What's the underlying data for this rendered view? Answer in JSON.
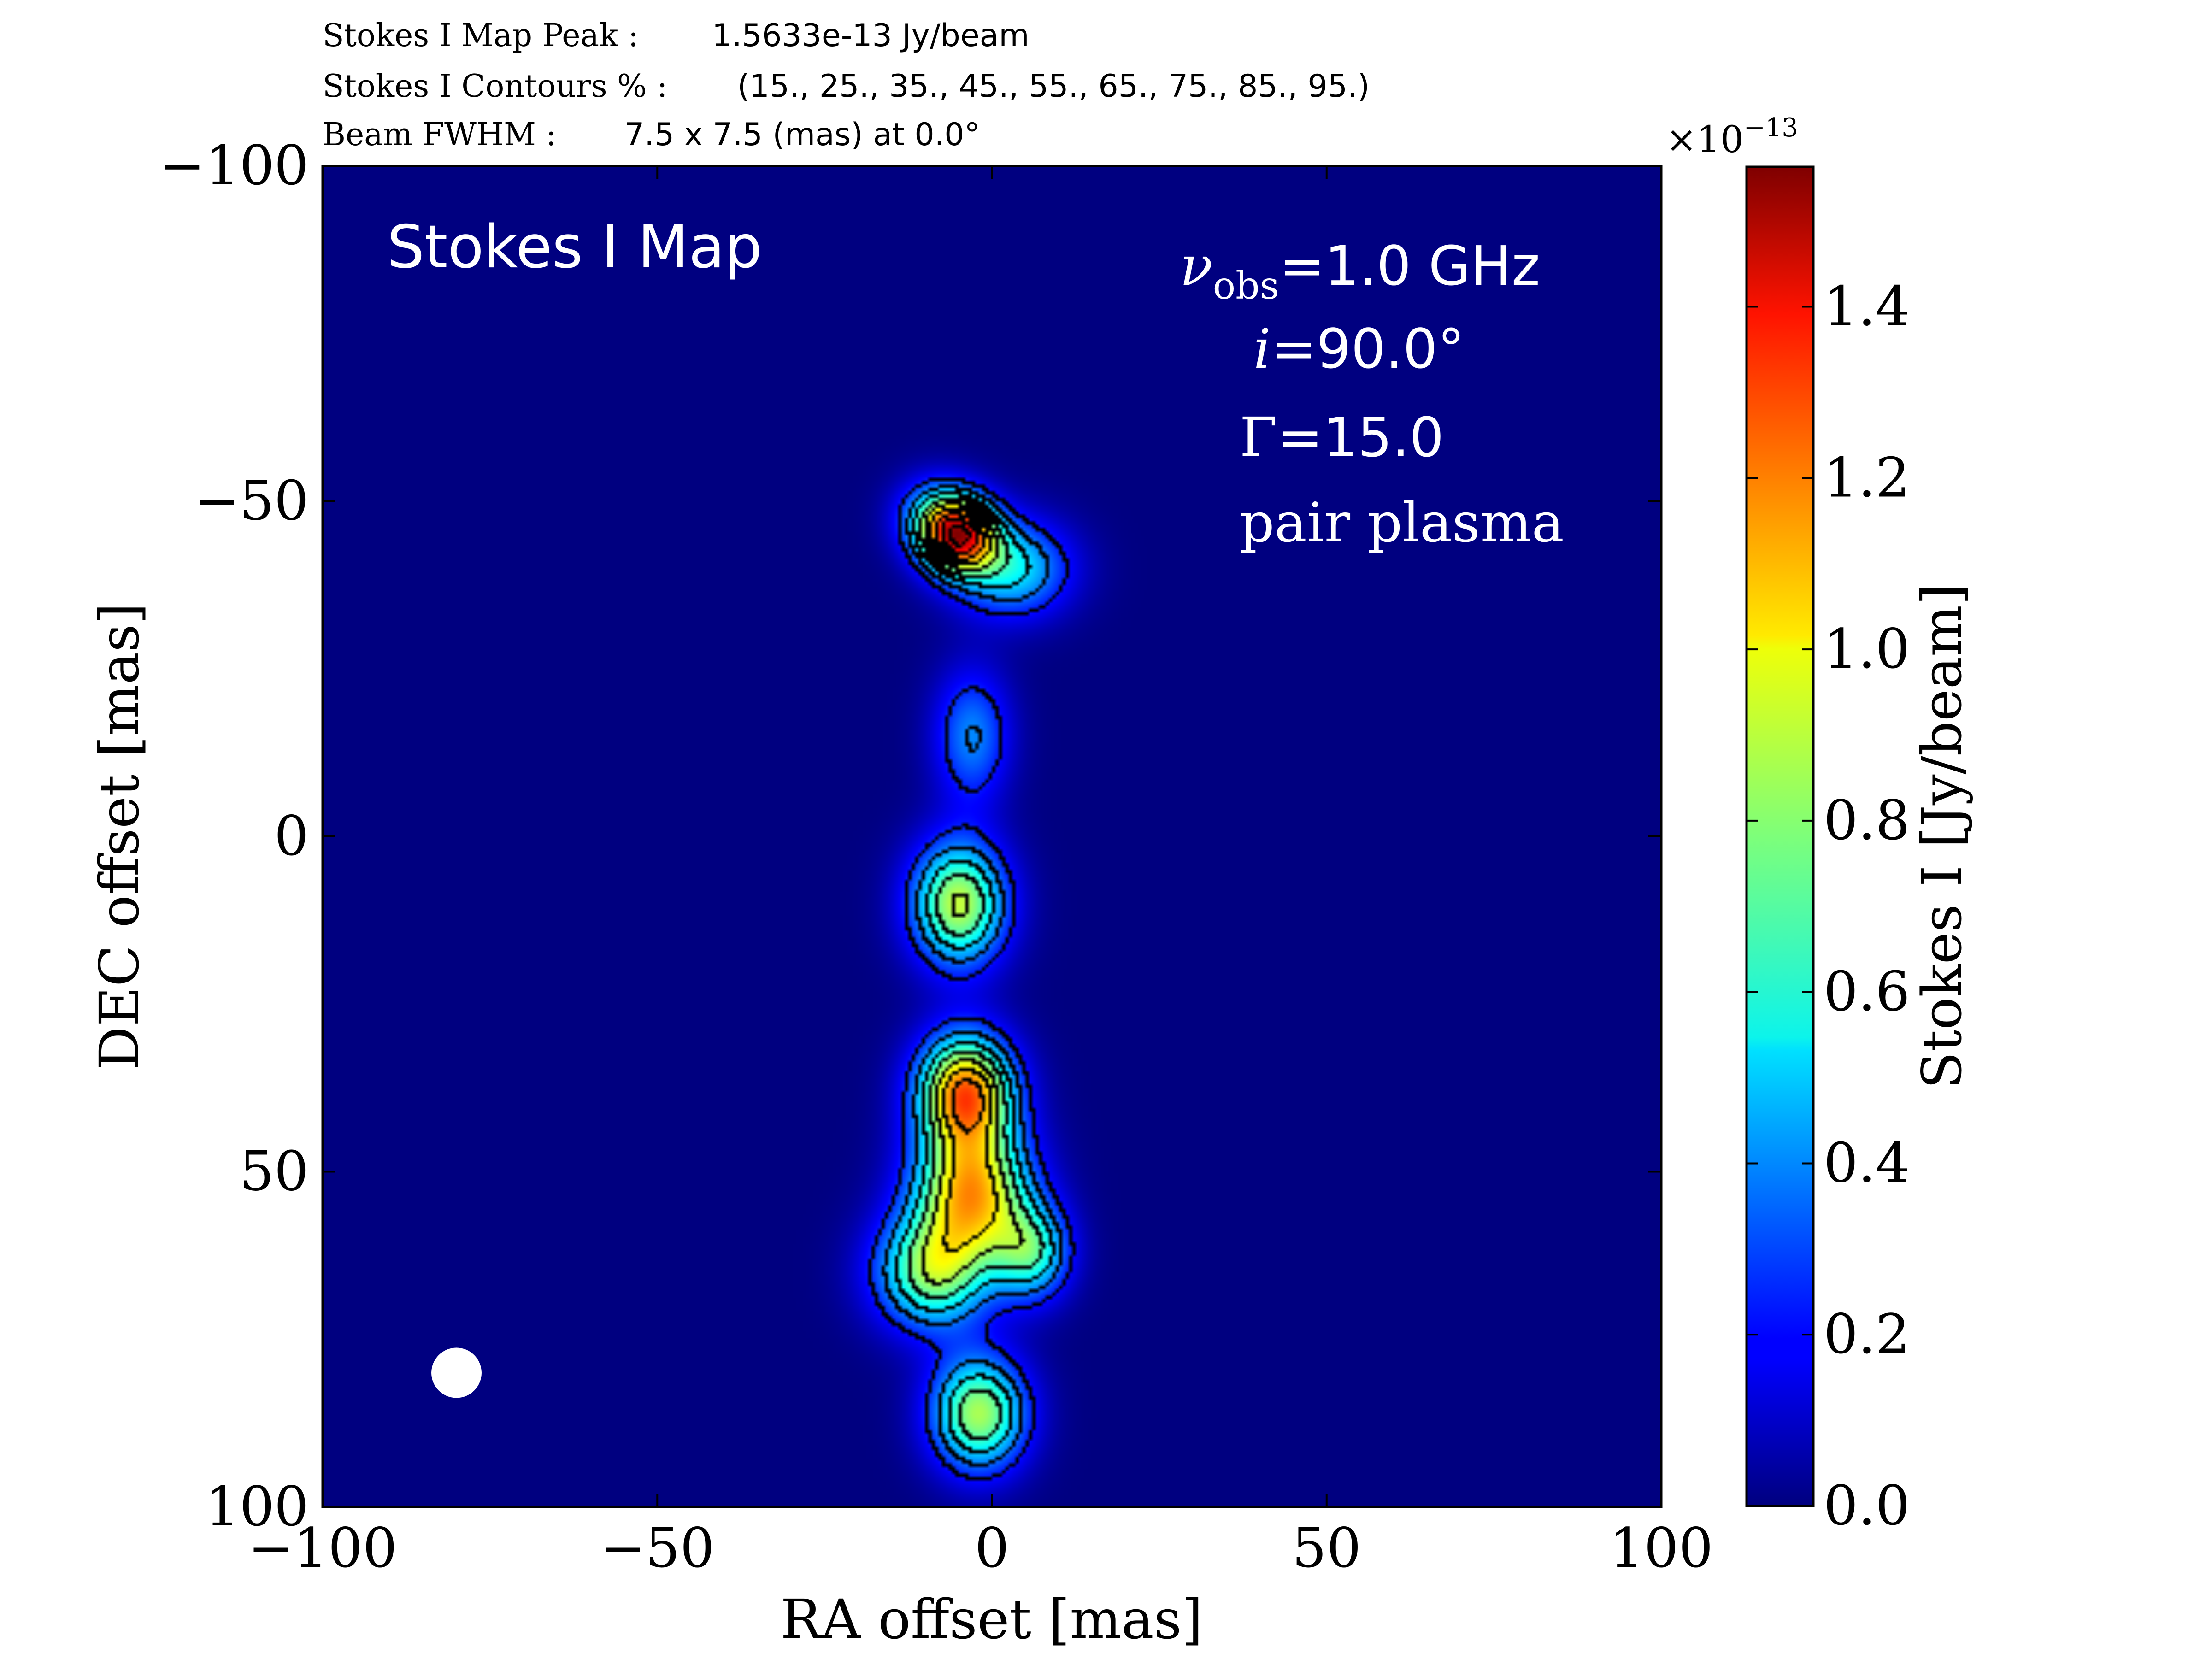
{
  "header": {
    "peak_label": "Stokes I Map Peak :",
    "peak_value": "1.5633e-13 Jy/beam",
    "contours_label": "Stokes I Contours % :",
    "contours_value": "(15., 25., 35., 45., 55., 65., 75., 85., 95.)",
    "beam_label": "Beam FWHM :",
    "beam_value": "7.5 x 7.5 (mas) at 0.0°"
  },
  "panel": {
    "title": "Stokes I Map",
    "nu_symbol": "ν",
    "nu_sub": "obs",
    "nu_value": "=1.0 GHz",
    "incl_symbol": "i",
    "incl_value": "=90.0°",
    "gamma_symbol": "Γ",
    "gamma_value": "=15.0",
    "plasma": "pair plasma"
  },
  "colorbar": {
    "label": "Stokes I [Jy/beam]",
    "exponent_base": "×10",
    "exponent_power": "−13",
    "min": 0.0,
    "max": 1.5633,
    "ticks": [
      "0.0",
      "0.2",
      "0.4",
      "0.6",
      "0.8",
      "1.0",
      "1.2",
      "1.4"
    ],
    "colormap": "jet"
  },
  "chart_data": {
    "type": "heatmap",
    "title": "Stokes I Map",
    "xlabel": "RA offset [mas]",
    "ylabel": "DEC offset [mas]",
    "xlim": [
      -100,
      100
    ],
    "ylim": [
      100,
      -100
    ],
    "y_inverted": true,
    "xticks": [
      "−100",
      "−50",
      "0",
      "50",
      "100"
    ],
    "yticks": [
      "−100",
      "−50",
      "0",
      "50",
      "100"
    ],
    "x_tick_values": [
      -100,
      -50,
      0,
      50,
      100
    ],
    "y_tick_values": [
      -100,
      -50,
      0,
      50,
      100
    ],
    "peak": "1.5633e-13 Jy/beam",
    "contour_levels_percent": [
      15,
      25,
      35,
      45,
      55,
      65,
      75,
      85,
      95
    ],
    "beam": {
      "ra": -80,
      "dec": 80,
      "fwhm_mas": 7.5,
      "pa_deg": 0.0
    },
    "components": [
      {
        "ra": -5,
        "dec": -45,
        "peak": 1.56,
        "sigma_ra": 4.0,
        "sigma_dec": 4.0
      },
      {
        "ra": 3,
        "dec": -40,
        "peak": 0.7,
        "sigma_ra": 6.0,
        "sigma_dec": 5.0
      },
      {
        "ra": -9,
        "dec": -48,
        "peak": 0.45,
        "sigma_ra": 4.0,
        "sigma_dec": 4.0
      },
      {
        "ra": -3,
        "dec": -15,
        "peak": 0.5,
        "sigma_ra": 4.0,
        "sigma_dec": 7.0
      },
      {
        "ra": -5,
        "dec": 10,
        "peak": 1.1,
        "sigma_ra": 5.0,
        "sigma_dec": 6.5
      },
      {
        "ra": -4,
        "dec": 38,
        "peak": 1.45,
        "sigma_ra": 5.0,
        "sigma_dec": 6.0
      },
      {
        "ra": -3,
        "dec": 53,
        "peak": 1.3,
        "sigma_ra": 6.0,
        "sigma_dec": 7.0
      },
      {
        "ra": -9,
        "dec": 65,
        "peak": 0.95,
        "sigma_ra": 6.0,
        "sigma_dec": 6.0
      },
      {
        "ra": 6,
        "dec": 62,
        "peak": 0.75,
        "sigma_ra": 4.0,
        "sigma_dec": 5.0
      },
      {
        "ra": -2,
        "dec": 86,
        "peak": 1.05,
        "sigma_ra": 5.0,
        "sigma_dec": 6.0
      }
    ]
  }
}
